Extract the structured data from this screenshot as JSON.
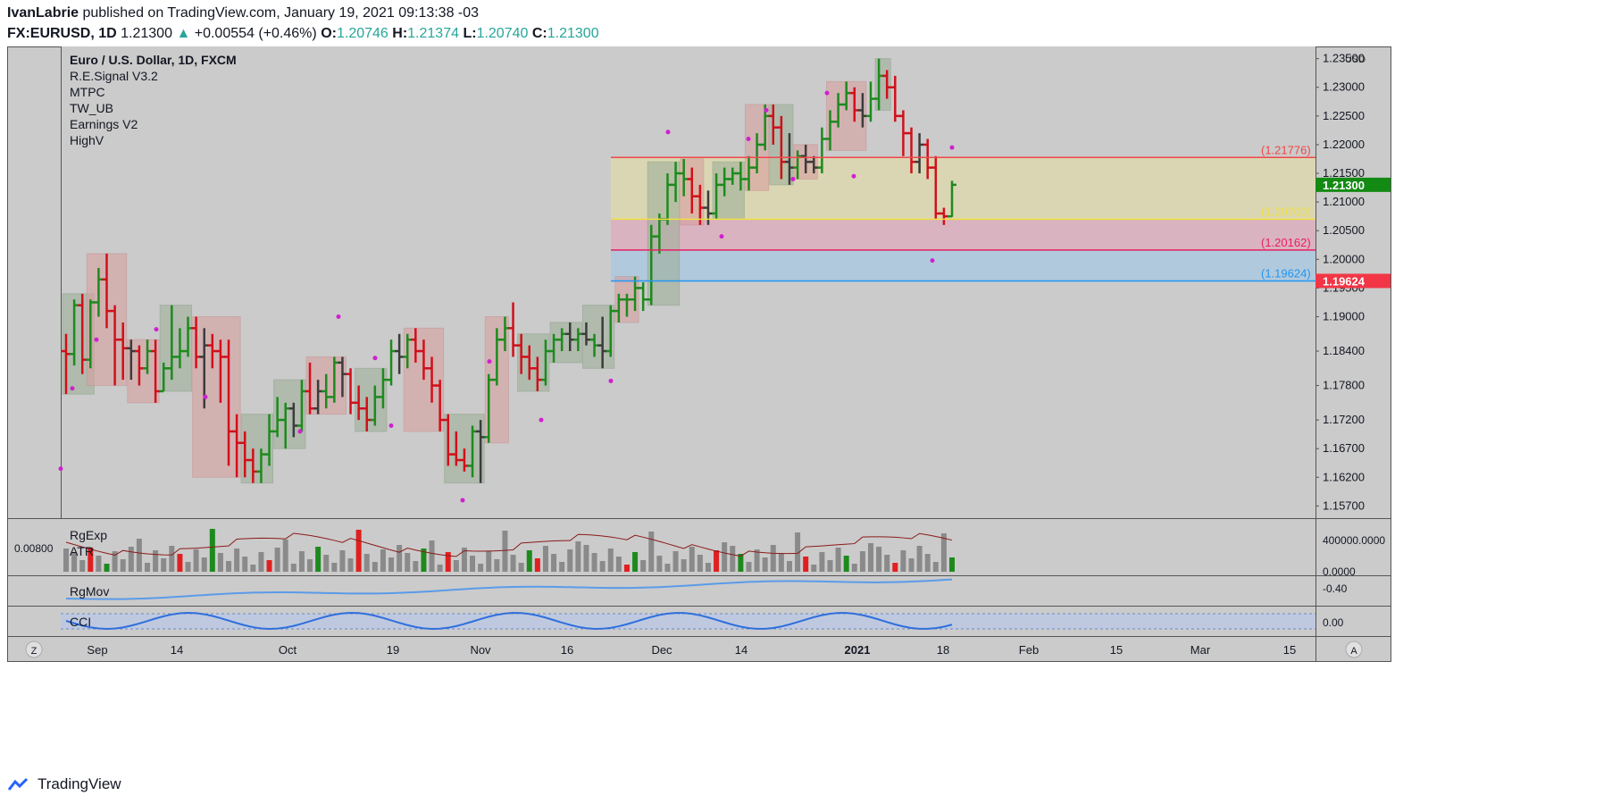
{
  "header": {
    "author": "IvanLabrie",
    "published": " published on TradingView.com, January 19, 2021 09:13:38 -03",
    "symbol": "FX:EURUSD, 1D",
    "last": "1.21300",
    "change": "+0.00554 (+0.46%)",
    "o_label": "O:",
    "o": "1.20746",
    "h_label": "H:",
    "h": "1.21374",
    "l_label": "L:",
    "l": "1.20740",
    "c_label": "C:",
    "c": "1.21300"
  },
  "legend": {
    "title": "Euro / U.S. Dollar, 1D, FXCM",
    "items": [
      "R.E.Signal V3.2",
      "MTPC",
      "TW_UB",
      "Earnings V2",
      "HighV"
    ]
  },
  "footer": {
    "brand": "TradingView"
  },
  "colors": {
    "bull": "#1e8a1e",
    "bear": "#d0101a",
    "neutral": "#3c3c3c",
    "red_line": "#f04848",
    "yellow_line": "#f0e040",
    "pink_line": "#e91e63",
    "blue_line": "#2196f3",
    "price_tag": "#138a13",
    "level_tag": "#f23645",
    "magenta_dot": "#d020d0"
  },
  "chart_data": [
    {
      "type": "bar",
      "title": "Euro / U.S. Dollar, 1D, FXCM",
      "currency": "USD",
      "y_axis_ticks": [
        "1.23500",
        "1.23000",
        "1.22500",
        "1.22000",
        "1.21500",
        "1.21000",
        "1.20500",
        "1.20000",
        "1.19500",
        "1.19000",
        "1.18400",
        "1.17800",
        "1.17200",
        "1.16700",
        "1.16200",
        "1.15700"
      ],
      "ylim": [
        1.1555,
        1.2365
      ],
      "x_axis_labels": [
        "Sep",
        "14",
        "Oct",
        "19",
        "Nov",
        "16",
        "Dec",
        "14",
        "2021",
        "18",
        "Feb",
        "15",
        "Mar",
        "15"
      ],
      "last_price": "1.21300",
      "levels": [
        {
          "label": "(1.21776)",
          "value": 1.21776,
          "color": "#f04848"
        },
        {
          "label": "(1.20700)",
          "value": 1.207,
          "color": "#f0e040"
        },
        {
          "label": "(1.20162)",
          "value": 1.20162,
          "color": "#e91e63"
        },
        {
          "label": "(1.19624)",
          "value": 1.19624,
          "color": "#2196f3"
        }
      ],
      "level_tag": "1.19624",
      "ohlc_x_index_0_is_first_bar": true,
      "ohlc": [
        [
          1.184,
          1.187,
          1.1765,
          1.1835,
          "r"
        ],
        [
          1.1835,
          1.193,
          1.1815,
          1.192,
          "g"
        ],
        [
          1.192,
          1.194,
          1.18,
          1.1825,
          "r"
        ],
        [
          1.1825,
          1.193,
          1.181,
          1.1925,
          "g"
        ],
        [
          1.1925,
          1.1985,
          1.19,
          1.1965,
          "g"
        ],
        [
          1.1965,
          1.201,
          1.188,
          1.191,
          "r"
        ],
        [
          1.191,
          1.192,
          1.178,
          1.186,
          "r"
        ],
        [
          1.186,
          1.189,
          1.179,
          1.1845,
          "r"
        ],
        [
          1.1845,
          1.186,
          1.179,
          1.184,
          "n"
        ],
        [
          1.184,
          1.185,
          1.178,
          1.181,
          "r"
        ],
        [
          1.181,
          1.186,
          1.18,
          1.184,
          "g"
        ],
        [
          1.184,
          1.186,
          1.175,
          1.177,
          "r"
        ],
        [
          1.177,
          1.182,
          1.177,
          1.181,
          "g"
        ],
        [
          1.181,
          1.192,
          1.179,
          1.183,
          "g"
        ],
        [
          1.183,
          1.188,
          1.181,
          1.184,
          "g"
        ],
        [
          1.184,
          1.19,
          1.183,
          1.188,
          "g"
        ],
        [
          1.188,
          1.19,
          1.181,
          1.183,
          "r"
        ],
        [
          1.183,
          1.188,
          1.174,
          1.185,
          "n"
        ],
        [
          1.185,
          1.187,
          1.181,
          1.184,
          "r"
        ],
        [
          1.184,
          1.186,
          1.175,
          1.183,
          "r"
        ],
        [
          1.183,
          1.186,
          1.164,
          1.17,
          "r"
        ],
        [
          1.17,
          1.173,
          1.162,
          1.168,
          "r"
        ],
        [
          1.168,
          1.17,
          1.162,
          1.165,
          "r"
        ],
        [
          1.165,
          1.167,
          1.161,
          1.163,
          "r"
        ],
        [
          1.163,
          1.167,
          1.161,
          1.166,
          "g"
        ],
        [
          1.166,
          1.173,
          1.164,
          1.17,
          "g"
        ],
        [
          1.17,
          1.176,
          1.169,
          1.172,
          "g"
        ],
        [
          1.172,
          1.175,
          1.167,
          1.174,
          "g"
        ],
        [
          1.174,
          1.175,
          1.169,
          1.171,
          "n"
        ],
        [
          1.171,
          1.179,
          1.17,
          1.177,
          "g"
        ],
        [
          1.177,
          1.182,
          1.173,
          1.174,
          "r"
        ],
        [
          1.174,
          1.179,
          1.173,
          1.177,
          "n"
        ],
        [
          1.177,
          1.18,
          1.174,
          1.176,
          "g"
        ],
        [
          1.176,
          1.183,
          1.175,
          1.182,
          "g"
        ],
        [
          1.182,
          1.183,
          1.176,
          1.18,
          "n"
        ],
        [
          1.18,
          1.181,
          1.173,
          1.175,
          "r"
        ],
        [
          1.175,
          1.178,
          1.172,
          1.174,
          "r"
        ],
        [
          1.174,
          1.176,
          1.17,
          1.172,
          "r"
        ],
        [
          1.172,
          1.178,
          1.171,
          1.176,
          "g"
        ],
        [
          1.176,
          1.181,
          1.174,
          1.179,
          "g"
        ],
        [
          1.179,
          1.186,
          1.178,
          1.184,
          "g"
        ],
        [
          1.184,
          1.187,
          1.18,
          1.183,
          "n"
        ],
        [
          1.183,
          1.187,
          1.181,
          1.186,
          "g"
        ],
        [
          1.186,
          1.188,
          1.182,
          1.184,
          "r"
        ],
        [
          1.184,
          1.186,
          1.179,
          1.181,
          "r"
        ],
        [
          1.181,
          1.183,
          1.175,
          1.178,
          "r"
        ],
        [
          1.178,
          1.179,
          1.17,
          1.172,
          "r"
        ],
        [
          1.172,
          1.173,
          1.164,
          1.166,
          "r"
        ],
        [
          1.166,
          1.17,
          1.164,
          1.165,
          "r"
        ],
        [
          1.165,
          1.167,
          1.163,
          1.164,
          "r"
        ],
        [
          1.164,
          1.171,
          1.162,
          1.17,
          "g"
        ],
        [
          1.17,
          1.172,
          1.161,
          1.169,
          "n"
        ],
        [
          1.169,
          1.18,
          1.168,
          1.179,
          "g"
        ],
        [
          1.179,
          1.188,
          1.178,
          1.186,
          "g"
        ],
        [
          1.186,
          1.19,
          1.184,
          1.188,
          "g"
        ],
        [
          1.188,
          1.1925,
          1.183,
          1.185,
          "r"
        ],
        [
          1.185,
          1.187,
          1.18,
          1.183,
          "r"
        ],
        [
          1.183,
          1.185,
          1.179,
          1.181,
          "r"
        ],
        [
          1.181,
          1.183,
          1.177,
          1.179,
          "r"
        ],
        [
          1.179,
          1.186,
          1.178,
          1.184,
          "g"
        ],
        [
          1.184,
          1.187,
          1.182,
          1.186,
          "g"
        ],
        [
          1.186,
          1.188,
          1.184,
          1.187,
          "g"
        ],
        [
          1.187,
          1.189,
          1.184,
          1.186,
          "n"
        ],
        [
          1.186,
          1.188,
          1.184,
          1.187,
          "g"
        ],
        [
          1.187,
          1.189,
          1.185,
          1.186,
          "n"
        ],
        [
          1.186,
          1.187,
          1.183,
          1.185,
          "g"
        ],
        [
          1.185,
          1.19,
          1.181,
          1.184,
          "n"
        ],
        [
          1.184,
          1.192,
          1.183,
          1.191,
          "g"
        ],
        [
          1.191,
          1.194,
          1.189,
          1.193,
          "g"
        ],
        [
          1.193,
          1.194,
          1.19,
          1.193,
          "g"
        ],
        [
          1.193,
          1.197,
          1.191,
          1.195,
          "g"
        ],
        [
          1.195,
          1.196,
          1.191,
          1.193,
          "g"
        ],
        [
          1.193,
          1.206,
          1.192,
          1.204,
          "g"
        ],
        [
          1.204,
          1.208,
          1.201,
          1.207,
          "g"
        ],
        [
          1.207,
          1.215,
          1.206,
          1.213,
          "g"
        ],
        [
          1.213,
          1.217,
          1.21,
          1.215,
          "g"
        ],
        [
          1.215,
          1.2175,
          1.211,
          1.214,
          "g"
        ],
        [
          1.214,
          1.216,
          1.208,
          1.211,
          "r"
        ],
        [
          1.211,
          1.213,
          1.206,
          1.209,
          "r"
        ],
        [
          1.209,
          1.212,
          1.206,
          1.208,
          "n"
        ],
        [
          1.208,
          1.215,
          1.207,
          1.213,
          "g"
        ],
        [
          1.213,
          1.216,
          1.211,
          1.214,
          "g"
        ],
        [
          1.214,
          1.216,
          1.213,
          1.215,
          "g"
        ],
        [
          1.215,
          1.217,
          1.212,
          1.214,
          "g"
        ],
        [
          1.214,
          1.218,
          1.212,
          1.216,
          "g"
        ],
        [
          1.216,
          1.222,
          1.215,
          1.22,
          "g"
        ],
        [
          1.22,
          1.227,
          1.219,
          1.225,
          "g"
        ],
        [
          1.225,
          1.227,
          1.22,
          1.223,
          "r"
        ],
        [
          1.223,
          1.225,
          1.214,
          1.217,
          "r"
        ],
        [
          1.217,
          1.222,
          1.213,
          1.216,
          "n"
        ],
        [
          1.216,
          1.219,
          1.214,
          1.218,
          "g"
        ],
        [
          1.218,
          1.22,
          1.215,
          1.217,
          "n"
        ],
        [
          1.217,
          1.218,
          1.215,
          1.216,
          "n"
        ],
        [
          1.216,
          1.223,
          1.215,
          1.221,
          "g"
        ],
        [
          1.221,
          1.226,
          1.219,
          1.224,
          "g"
        ],
        [
          1.224,
          1.229,
          1.223,
          1.227,
          "g"
        ],
        [
          1.227,
          1.231,
          1.226,
          1.229,
          "g"
        ],
        [
          1.229,
          1.23,
          1.224,
          1.226,
          "r"
        ],
        [
          1.226,
          1.229,
          1.223,
          1.225,
          "n"
        ],
        [
          1.225,
          1.231,
          1.224,
          1.228,
          "g"
        ],
        [
          1.228,
          1.235,
          1.226,
          1.232,
          "g"
        ],
        [
          1.232,
          1.233,
          1.228,
          1.23,
          "r"
        ],
        [
          1.23,
          1.232,
          1.224,
          1.225,
          "r"
        ],
        [
          1.225,
          1.226,
          1.218,
          1.222,
          "r"
        ],
        [
          1.222,
          1.223,
          1.215,
          1.217,
          "r"
        ],
        [
          1.217,
          1.222,
          1.215,
          1.22,
          "n"
        ],
        [
          1.22,
          1.221,
          1.214,
          1.216,
          "r"
        ],
        [
          1.216,
          1.218,
          1.207,
          1.208,
          "r"
        ],
        [
          1.208,
          1.209,
          1.206,
          1.2075,
          "r"
        ],
        [
          1.2075,
          1.2137,
          1.2074,
          1.213,
          "g"
        ]
      ]
    },
    {
      "type": "bar",
      "name": "RgExp / ATR",
      "labels": [
        "RgExp",
        "ATR"
      ],
      "left_value": "0.00800",
      "y_axis_ticks": [
        "400000.0000",
        "0.0000"
      ]
    },
    {
      "type": "line",
      "name": "RgMov",
      "labels": [
        "RgMov"
      ],
      "y_axis_ticks": [
        "-0.40"
      ]
    },
    {
      "type": "line",
      "name": "CCI",
      "labels": [
        "CCI"
      ],
      "y_axis_ticks": [
        "0.00"
      ]
    }
  ],
  "nav": {
    "left_btn": "Z",
    "right_btn": "A"
  }
}
